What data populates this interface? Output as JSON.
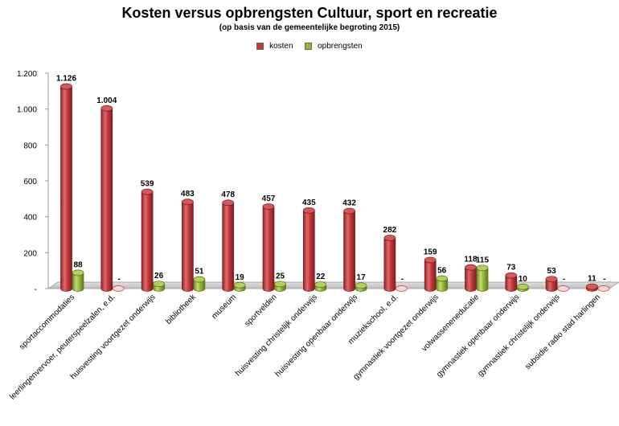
{
  "chart_data": {
    "type": "bar",
    "title": "Kosten versus opbrengsten Cultuur, sport en recreatie",
    "subtitle": "(op basis van de gemeentelijke begroting 2015)",
    "categories": [
      "sportaccommodaties",
      "leerlingenvervoer, peuterspeelzalen, e.d.",
      "huisvesting voortgezet onderwijs",
      "bibliotheek",
      "museum",
      "sportvelden",
      "huisvesting christelijk onderwijs",
      "huisvesting openbaar onderwijs",
      "muziekschool, e.d.",
      "gymnastiek voortgezet onderwijs",
      "volwasseneneducatie",
      "gymnastiek openbaar onderwijs",
      "gymnastiek christelijk onderwijs",
      "subsidie radio stad harlingen"
    ],
    "series": [
      {
        "name": "kosten",
        "color": "#c0393b",
        "values": [
          1126,
          1004,
          539,
          483,
          478,
          457,
          435,
          432,
          282,
          159,
          118,
          73,
          53,
          11
        ],
        "labels": [
          "1.126",
          "1.004",
          "539",
          "483",
          "478",
          "457",
          "435",
          "432",
          "282",
          "159",
          "118",
          "73",
          "53",
          "11"
        ]
      },
      {
        "name": "opbrengsten",
        "color": "#94b53a",
        "values": [
          88,
          0,
          26,
          51,
          19,
          25,
          22,
          17,
          0,
          56,
          115,
          10,
          0,
          0
        ],
        "labels": [
          "88",
          "-",
          "26",
          "51",
          "19",
          "25",
          "22",
          "17",
          "-",
          "56",
          "115",
          "10",
          "-",
          "-"
        ]
      }
    ],
    "yticks": [
      "-",
      "200",
      "400",
      "600",
      "800",
      "1.000",
      "1.200"
    ],
    "ylim": [
      0,
      1200
    ],
    "grid": false,
    "legend_position": "top-center"
  }
}
